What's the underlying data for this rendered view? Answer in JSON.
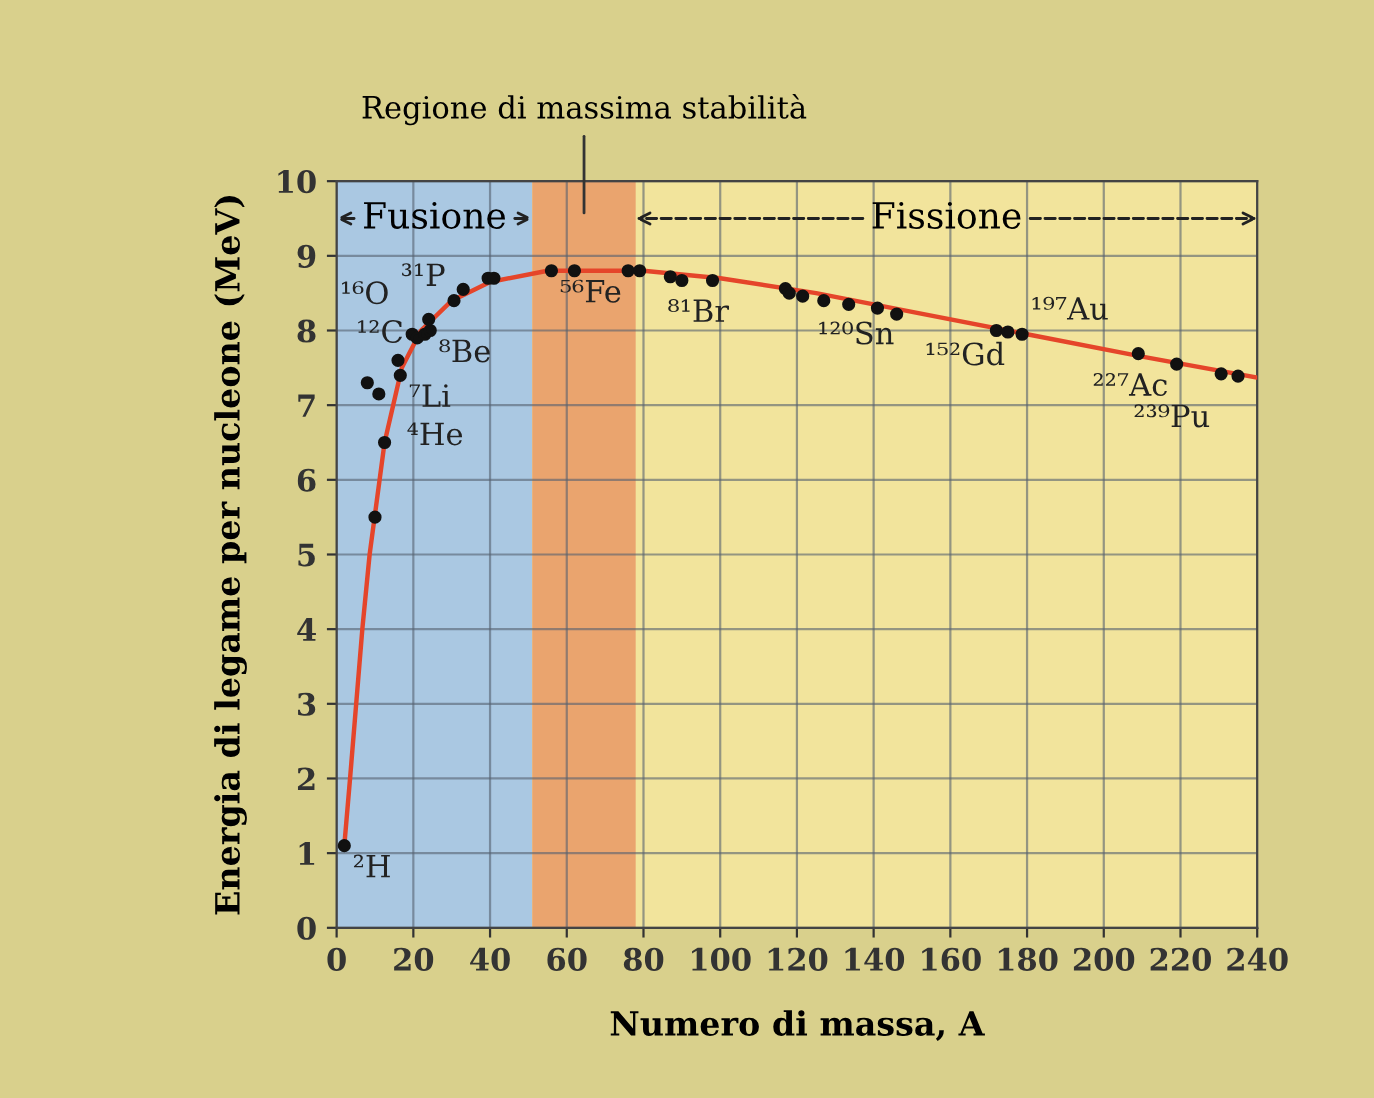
{
  "chart_data": {
    "type": "scatter",
    "xlabel": "Numero di massa, A",
    "ylabel": "Energia di legame per nucleone (MeV)",
    "xlim": [
      0,
      240
    ],
    "ylim": [
      0,
      10
    ],
    "xticks": [
      0,
      20,
      40,
      60,
      80,
      100,
      120,
      140,
      160,
      180,
      200,
      220,
      240
    ],
    "yticks": [
      0,
      1,
      2,
      3,
      4,
      5,
      6,
      7,
      8,
      9,
      10
    ],
    "grid": true,
    "legend": false,
    "series": [
      {
        "type": "line",
        "color": "#e5452a",
        "line_style": "solid",
        "marker": "none",
        "x": [
          2,
          3.5,
          6.7,
          8.6,
          12.5,
          17,
          22,
          30,
          40,
          55,
          80,
          100,
          125,
          150,
          180,
          210,
          240
        ],
        "values": [
          1.1,
          2,
          4,
          5,
          6.5,
          7.5,
          8,
          8.4,
          8.65,
          8.8,
          8.8,
          8.7,
          8.5,
          8.25,
          7.95,
          7.65,
          7.37
        ]
      },
      {
        "color": "#111111",
        "marker": "circle",
        "x": [
          2,
          10,
          12.5,
          16.6,
          8,
          11,
          16,
          19.7,
          21,
          23,
          24.4,
          24,
          30.6,
          33,
          39.5,
          41,
          56,
          62,
          76,
          79,
          87,
          90,
          98,
          117,
          118,
          121.5,
          127,
          133.5,
          141,
          146,
          172,
          175,
          178.7,
          209,
          219,
          230.6,
          235
        ],
        "values": [
          1.1,
          5.5,
          6.5,
          7.4,
          7.3,
          7.15,
          7.6,
          7.95,
          7.9,
          7.95,
          8.0,
          8.15,
          8.4,
          8.55,
          8.7,
          8.7,
          8.8,
          8.8,
          8.8,
          8.8,
          8.72,
          8.67,
          8.67,
          8.56,
          8.5,
          8.46,
          8.4,
          8.35,
          8.3,
          8.22,
          8.0,
          7.98,
          7.95,
          7.69,
          7.55,
          7.42,
          7.39
        ]
      }
    ],
    "bands": [
      {
        "axis": "x",
        "from": 0,
        "to": 51,
        "label": "Fusione",
        "color": "#aac8e2"
      },
      {
        "axis": "x",
        "from": 51,
        "to": 78,
        "label": "Regione di massima stabilità",
        "color": "#eaa46e"
      },
      {
        "axis": "x",
        "from": 78,
        "to": 240,
        "label": "Fissione",
        "color": "#f2e49c"
      }
    ],
    "annotations": [
      {
        "text": "²H",
        "x": 2,
        "y": 1.1
      },
      {
        "text": "⁴He",
        "x": 11,
        "y": 7.15
      },
      {
        "text": "⁷Li",
        "x": 16.6,
        "y": 7.4
      },
      {
        "text": "⁸Be",
        "x": 24.4,
        "y": 8.0
      },
      {
        "text": "¹²C",
        "x": 19.7,
        "y": 7.95
      },
      {
        "text": "¹⁶O",
        "x": 21,
        "y": 7.9
      },
      {
        "text": "³¹P",
        "x": 30.6,
        "y": 8.4
      },
      {
        "text": "⁵⁶Fe",
        "x": 56,
        "y": 8.8
      },
      {
        "text": "⁸¹Br",
        "x": 79,
        "y": 8.8
      },
      {
        "text": "¹²⁰Sn",
        "x": 118,
        "y": 8.5
      },
      {
        "text": "¹⁵²Gd",
        "x": 146,
        "y": 8.22
      },
      {
        "text": "¹⁹⁷Au",
        "x": 178.7,
        "y": 7.95
      },
      {
        "text": "²²⁷Ac",
        "x": 219,
        "y": 7.55
      },
      {
        "text": "²³⁹Pu",
        "x": 235,
        "y": 7.39
      }
    ]
  }
}
